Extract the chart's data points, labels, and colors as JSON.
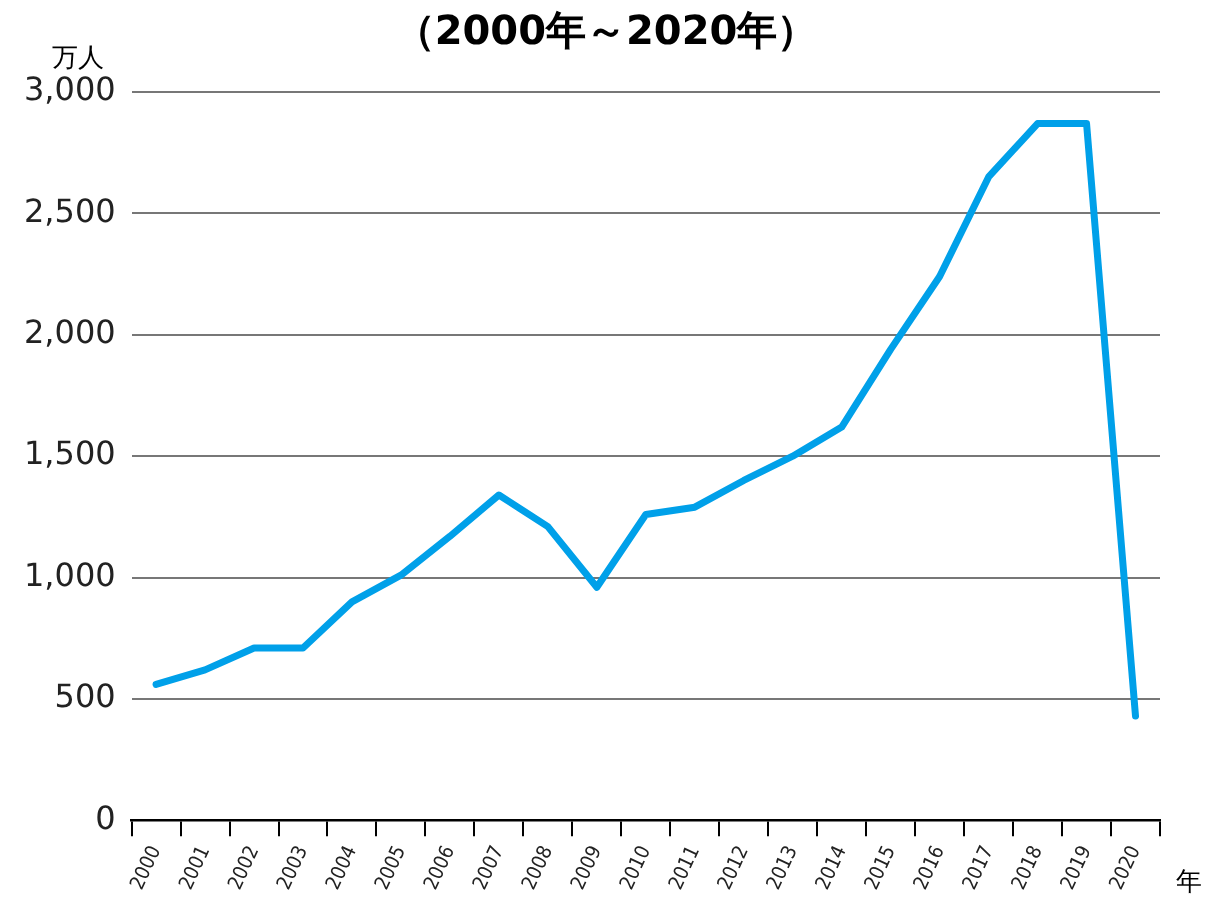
{
  "chart_data": {
    "type": "line",
    "title": "（2000年～2020年）",
    "ylabel": "万人",
    "xlabel": "年",
    "categories": [
      "2000",
      "2001",
      "2002",
      "2003",
      "2004",
      "2005",
      "2006",
      "2007",
      "2008",
      "2009",
      "2010",
      "2011",
      "2012",
      "2013",
      "2014",
      "2015",
      "2016",
      "2017",
      "2018",
      "2019",
      "2020"
    ],
    "series": [
      {
        "color": "#00a0e9",
        "values": [
          560,
          620,
          710,
          710,
          900,
          1010,
          1170,
          1340,
          1210,
          960,
          1260,
          1290,
          1400,
          1500,
          1620,
          1940,
          2240,
          2650,
          2870,
          2870,
          430
        ]
      }
    ],
    "ylim": [
      0,
      3000
    ],
    "yticks": [
      0,
      {
        "value": 500,
        "label": "500"
      },
      {
        "value": 1000,
        "label": "1,000"
      },
      {
        "value": 1500,
        "label": "1,500"
      },
      {
        "value": 2000,
        "label": "2,000"
      },
      {
        "value": 2500,
        "label": "2,500"
      },
      {
        "value": 3000,
        "label": "3,000"
      }
    ],
    "grid": "y",
    "legend": false,
    "marker": "none",
    "line_style": "solid"
  }
}
